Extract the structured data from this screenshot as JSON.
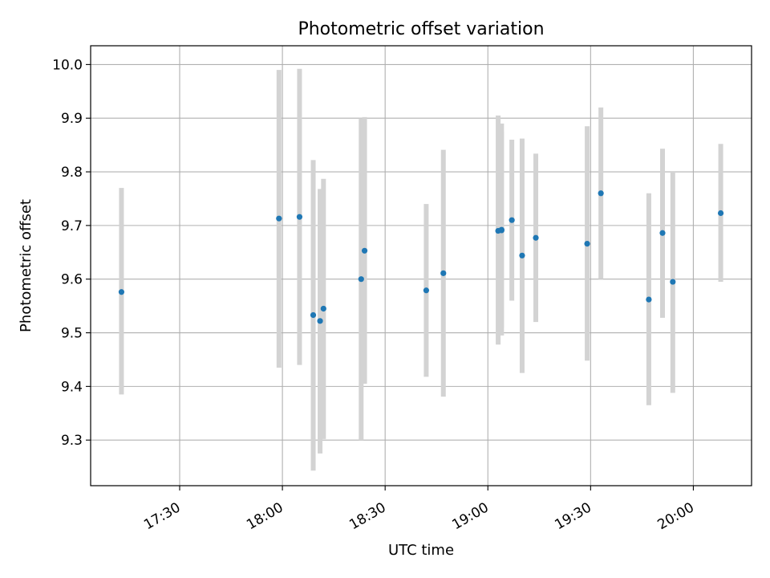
{
  "chart_data": {
    "type": "scatter",
    "title": "Photometric offset variation",
    "xlabel": "UTC time",
    "ylabel": "Photometric offset",
    "xlim": [
      "17:04",
      "20:17"
    ],
    "ylim": [
      9.215,
      10.035
    ],
    "x_ticks": [
      "17:30",
      "18:00",
      "18:30",
      "19:00",
      "19:30",
      "20:00"
    ],
    "y_ticks": [
      "9.3",
      "9.4",
      "9.5",
      "9.6",
      "9.7",
      "9.8",
      "9.9",
      "10.0"
    ],
    "grid": true,
    "point_color": "#1f77b4",
    "errorbar_color": "#d3d3d3",
    "points": [
      {
        "x": "17:13",
        "y": 9.576,
        "err_low": 9.385,
        "err_high": 9.77
      },
      {
        "x": "17:59",
        "y": 9.713,
        "err_low": 9.435,
        "err_high": 9.99
      },
      {
        "x": "18:05",
        "y": 9.716,
        "err_low": 9.44,
        "err_high": 9.992
      },
      {
        "x": "18:09",
        "y": 9.533,
        "err_low": 9.243,
        "err_high": 9.822
      },
      {
        "x": "18:11",
        "y": 9.522,
        "err_low": 9.275,
        "err_high": 9.768
      },
      {
        "x": "18:12",
        "y": 9.545,
        "err_low": 9.302,
        "err_high": 9.787
      },
      {
        "x": "18:23",
        "y": 9.6,
        "err_low": 9.3,
        "err_high": 9.9
      },
      {
        "x": "18:24",
        "y": 9.653,
        "err_low": 9.405,
        "err_high": 9.902
      },
      {
        "x": "18:42",
        "y": 9.579,
        "err_low": 9.418,
        "err_high": 9.74
      },
      {
        "x": "18:47",
        "y": 9.611,
        "err_low": 9.381,
        "err_high": 9.841
      },
      {
        "x": "19:03",
        "y": 9.69,
        "err_low": 9.478,
        "err_high": 9.905
      },
      {
        "x": "19:04",
        "y": 9.692,
        "err_low": 9.495,
        "err_high": 9.89
      },
      {
        "x": "19:04",
        "y": 9.691,
        "err_low": 9.51,
        "err_high": 9.875
      },
      {
        "x": "19:07",
        "y": 9.71,
        "err_low": 9.56,
        "err_high": 9.86
      },
      {
        "x": "19:10",
        "y": 9.644,
        "err_low": 9.425,
        "err_high": 9.862
      },
      {
        "x": "19:14",
        "y": 9.677,
        "err_low": 9.52,
        "err_high": 9.834
      },
      {
        "x": "19:29",
        "y": 9.666,
        "err_low": 9.448,
        "err_high": 9.885
      },
      {
        "x": "19:33",
        "y": 9.76,
        "err_low": 9.6,
        "err_high": 9.92
      },
      {
        "x": "19:47",
        "y": 9.562,
        "err_low": 9.365,
        "err_high": 9.76
      },
      {
        "x": "19:51",
        "y": 9.686,
        "err_low": 9.528,
        "err_high": 9.843
      },
      {
        "x": "19:54",
        "y": 9.595,
        "err_low": 9.388,
        "err_high": 9.8
      },
      {
        "x": "20:08",
        "y": 9.723,
        "err_low": 9.595,
        "err_high": 9.852
      }
    ]
  }
}
